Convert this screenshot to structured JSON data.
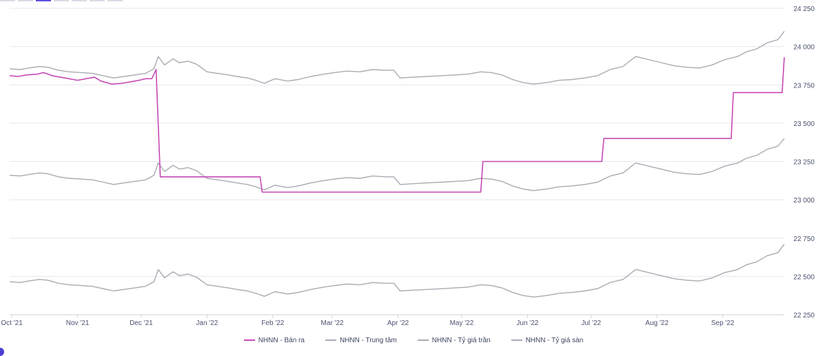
{
  "chart_data": {
    "type": "line",
    "title": "",
    "xlabel": "",
    "ylabel": "",
    "ylim": [
      22250,
      24250
    ],
    "yticks": [
      24250,
      24000,
      23750,
      23500,
      23250,
      23000,
      22750,
      22500,
      22250
    ],
    "ytick_labels": [
      "24 250",
      "24 000",
      "23 750",
      "23 500",
      "23 250",
      "23 000",
      "22 750",
      "22 500",
      "22 250"
    ],
    "x_range": [
      "2021-09-30",
      "2022-09-30"
    ],
    "xticks": [
      {
        "date": "2021-10-01",
        "label": "Oct '21"
      },
      {
        "date": "2021-11-01",
        "label": "Nov '21"
      },
      {
        "date": "2021-12-01",
        "label": "Dec '21"
      },
      {
        "date": "2022-01-01",
        "label": "Jan '22"
      },
      {
        "date": "2022-02-01",
        "label": "Feb '22"
      },
      {
        "date": "2022-03-01",
        "label": "Mar '22"
      },
      {
        "date": "2022-04-01",
        "label": "Apr '22"
      },
      {
        "date": "2022-05-01",
        "label": "May '22"
      },
      {
        "date": "2022-06-01",
        "label": "Jun '22"
      },
      {
        "date": "2022-07-01",
        "label": "Jul '22"
      },
      {
        "date": "2022-08-01",
        "label": "Aug '22"
      },
      {
        "date": "2022-09-01",
        "label": "Sep '22"
      }
    ],
    "grid": "horizontal",
    "legend_position": "bottom-center",
    "series": [
      {
        "name": "NHNN - Bán ra",
        "color": "#c648b4",
        "step": true,
        "points": [
          [
            "2021-09-30",
            23810
          ],
          [
            "2021-10-04",
            23805
          ],
          [
            "2021-10-08",
            23815
          ],
          [
            "2021-10-13",
            23820
          ],
          [
            "2021-10-16",
            23830
          ],
          [
            "2021-10-20",
            23810
          ],
          [
            "2021-10-26",
            23795
          ],
          [
            "2021-11-01",
            23780
          ],
          [
            "2021-11-05",
            23790
          ],
          [
            "2021-11-09",
            23800
          ],
          [
            "2021-11-12",
            23775
          ],
          [
            "2021-11-17",
            23755
          ],
          [
            "2021-11-22",
            23760
          ],
          [
            "2021-11-26",
            23770
          ],
          [
            "2021-11-30",
            23780
          ],
          [
            "2021-12-03",
            23790
          ],
          [
            "2021-12-06",
            23790
          ],
          [
            "2021-12-08",
            23850
          ],
          [
            "2021-12-10",
            23150
          ],
          [
            "2022-01-26",
            23150
          ],
          [
            "2022-01-27",
            23050
          ],
          [
            "2022-05-10",
            23050
          ],
          [
            "2022-05-11",
            23250
          ],
          [
            "2022-07-06",
            23250
          ],
          [
            "2022-07-07",
            23400
          ],
          [
            "2022-09-05",
            23400
          ],
          [
            "2022-09-06",
            23700
          ],
          [
            "2022-09-29",
            23700
          ],
          [
            "2022-09-30",
            23930
          ]
        ]
      },
      {
        "name": "NHNN - Trung tâm",
        "color": "#a9abb3",
        "step": false,
        "points": [
          [
            "2021-09-30",
            23160
          ],
          [
            "2021-10-05",
            23155
          ],
          [
            "2021-10-09",
            23165
          ],
          [
            "2021-10-14",
            23175
          ],
          [
            "2021-10-18",
            23170
          ],
          [
            "2021-10-23",
            23150
          ],
          [
            "2021-10-28",
            23140
          ],
          [
            "2021-11-03",
            23135
          ],
          [
            "2021-11-08",
            23130
          ],
          [
            "2021-11-13",
            23115
          ],
          [
            "2021-11-18",
            23100
          ],
          [
            "2021-11-23",
            23110
          ],
          [
            "2021-11-28",
            23120
          ],
          [
            "2021-12-03",
            23130
          ],
          [
            "2021-12-07",
            23160
          ],
          [
            "2021-12-09",
            23240
          ],
          [
            "2021-12-12",
            23185
          ],
          [
            "2021-12-16",
            23225
          ],
          [
            "2021-12-19",
            23200
          ],
          [
            "2021-12-23",
            23210
          ],
          [
            "2021-12-27",
            23190
          ],
          [
            "2022-01-01",
            23140
          ],
          [
            "2022-01-06",
            23130
          ],
          [
            "2022-01-11",
            23120
          ],
          [
            "2022-01-15",
            23110
          ],
          [
            "2022-01-20",
            23100
          ],
          [
            "2022-01-24",
            23085
          ],
          [
            "2022-01-28",
            23065
          ],
          [
            "2022-02-02",
            23095
          ],
          [
            "2022-02-08",
            23080
          ],
          [
            "2022-02-13",
            23090
          ],
          [
            "2022-02-19",
            23110
          ],
          [
            "2022-02-25",
            23125
          ],
          [
            "2022-03-02",
            23135
          ],
          [
            "2022-03-08",
            23145
          ],
          [
            "2022-03-14",
            23140
          ],
          [
            "2022-03-20",
            23155
          ],
          [
            "2022-03-26",
            23150
          ],
          [
            "2022-03-30",
            23150
          ],
          [
            "2022-04-02",
            23100
          ],
          [
            "2022-04-08",
            23105
          ],
          [
            "2022-04-15",
            23110
          ],
          [
            "2022-04-22",
            23115
          ],
          [
            "2022-04-28",
            23120
          ],
          [
            "2022-05-04",
            23125
          ],
          [
            "2022-05-10",
            23140
          ],
          [
            "2022-05-15",
            23135
          ],
          [
            "2022-05-20",
            23120
          ],
          [
            "2022-05-25",
            23090
          ],
          [
            "2022-05-30",
            23070
          ],
          [
            "2022-06-04",
            23060
          ],
          [
            "2022-06-10",
            23070
          ],
          [
            "2022-06-16",
            23085
          ],
          [
            "2022-06-22",
            23090
          ],
          [
            "2022-06-28",
            23100
          ],
          [
            "2022-07-04",
            23115
          ],
          [
            "2022-07-10",
            23155
          ],
          [
            "2022-07-16",
            23175
          ],
          [
            "2022-07-22",
            23240
          ],
          [
            "2022-07-28",
            23220
          ],
          [
            "2022-08-03",
            23200
          ],
          [
            "2022-08-09",
            23180
          ],
          [
            "2022-08-15",
            23170
          ],
          [
            "2022-08-21",
            23165
          ],
          [
            "2022-08-27",
            23185
          ],
          [
            "2022-09-02",
            23220
          ],
          [
            "2022-09-08",
            23240
          ],
          [
            "2022-09-12",
            23270
          ],
          [
            "2022-09-17",
            23290
          ],
          [
            "2022-09-22",
            23330
          ],
          [
            "2022-09-27",
            23350
          ],
          [
            "2022-09-30",
            23400
          ]
        ]
      },
      {
        "name": "NHNN - Tỷ giá trần",
        "color": "#a9abb3",
        "step": false,
        "points": [
          [
            "2021-09-30",
            23855
          ],
          [
            "2021-10-05",
            23850
          ],
          [
            "2021-10-09",
            23860
          ],
          [
            "2021-10-14",
            23870
          ],
          [
            "2021-10-18",
            23865
          ],
          [
            "2021-10-23",
            23845
          ],
          [
            "2021-10-28",
            23835
          ],
          [
            "2021-11-03",
            23830
          ],
          [
            "2021-11-08",
            23825
          ],
          [
            "2021-11-13",
            23810
          ],
          [
            "2021-11-18",
            23795
          ],
          [
            "2021-11-23",
            23805
          ],
          [
            "2021-11-28",
            23815
          ],
          [
            "2021-12-03",
            23825
          ],
          [
            "2021-12-07",
            23855
          ],
          [
            "2021-12-09",
            23935
          ],
          [
            "2021-12-12",
            23880
          ],
          [
            "2021-12-16",
            23920
          ],
          [
            "2021-12-19",
            23895
          ],
          [
            "2021-12-23",
            23905
          ],
          [
            "2021-12-27",
            23885
          ],
          [
            "2022-01-01",
            23835
          ],
          [
            "2022-01-06",
            23825
          ],
          [
            "2022-01-11",
            23815
          ],
          [
            "2022-01-15",
            23805
          ],
          [
            "2022-01-20",
            23795
          ],
          [
            "2022-01-24",
            23780
          ],
          [
            "2022-01-28",
            23760
          ],
          [
            "2022-02-02",
            23790
          ],
          [
            "2022-02-08",
            23775
          ],
          [
            "2022-02-13",
            23785
          ],
          [
            "2022-02-19",
            23805
          ],
          [
            "2022-02-25",
            23820
          ],
          [
            "2022-03-02",
            23830
          ],
          [
            "2022-03-08",
            23840
          ],
          [
            "2022-03-14",
            23835
          ],
          [
            "2022-03-20",
            23850
          ],
          [
            "2022-03-26",
            23845
          ],
          [
            "2022-03-30",
            23845
          ],
          [
            "2022-04-02",
            23795
          ],
          [
            "2022-04-08",
            23800
          ],
          [
            "2022-04-15",
            23805
          ],
          [
            "2022-04-22",
            23810
          ],
          [
            "2022-04-28",
            23815
          ],
          [
            "2022-05-04",
            23820
          ],
          [
            "2022-05-10",
            23835
          ],
          [
            "2022-05-15",
            23830
          ],
          [
            "2022-05-20",
            23815
          ],
          [
            "2022-05-25",
            23785
          ],
          [
            "2022-05-30",
            23765
          ],
          [
            "2022-06-04",
            23755
          ],
          [
            "2022-06-10",
            23765
          ],
          [
            "2022-06-16",
            23780
          ],
          [
            "2022-06-22",
            23785
          ],
          [
            "2022-06-28",
            23795
          ],
          [
            "2022-07-04",
            23810
          ],
          [
            "2022-07-10",
            23850
          ],
          [
            "2022-07-16",
            23870
          ],
          [
            "2022-07-22",
            23935
          ],
          [
            "2022-07-28",
            23915
          ],
          [
            "2022-08-03",
            23895
          ],
          [
            "2022-08-09",
            23875
          ],
          [
            "2022-08-15",
            23865
          ],
          [
            "2022-08-21",
            23860
          ],
          [
            "2022-08-27",
            23880
          ],
          [
            "2022-09-02",
            23915
          ],
          [
            "2022-09-08",
            23935
          ],
          [
            "2022-09-12",
            23965
          ],
          [
            "2022-09-17",
            23985
          ],
          [
            "2022-09-22",
            24025
          ],
          [
            "2022-09-27",
            24045
          ],
          [
            "2022-09-30",
            24100
          ]
        ]
      },
      {
        "name": "NHNN - Tỷ giá sàn",
        "color": "#a9abb3",
        "step": false,
        "points": [
          [
            "2021-09-30",
            22465
          ],
          [
            "2021-10-05",
            22460
          ],
          [
            "2021-10-09",
            22470
          ],
          [
            "2021-10-14",
            22480
          ],
          [
            "2021-10-18",
            22475
          ],
          [
            "2021-10-23",
            22455
          ],
          [
            "2021-10-28",
            22445
          ],
          [
            "2021-11-03",
            22440
          ],
          [
            "2021-11-08",
            22435
          ],
          [
            "2021-11-13",
            22420
          ],
          [
            "2021-11-18",
            22405
          ],
          [
            "2021-11-23",
            22415
          ],
          [
            "2021-11-28",
            22425
          ],
          [
            "2021-12-03",
            22435
          ],
          [
            "2021-12-07",
            22465
          ],
          [
            "2021-12-09",
            22545
          ],
          [
            "2021-12-12",
            22490
          ],
          [
            "2021-12-16",
            22530
          ],
          [
            "2021-12-19",
            22505
          ],
          [
            "2021-12-23",
            22515
          ],
          [
            "2021-12-27",
            22495
          ],
          [
            "2022-01-01",
            22445
          ],
          [
            "2022-01-06",
            22435
          ],
          [
            "2022-01-11",
            22425
          ],
          [
            "2022-01-15",
            22415
          ],
          [
            "2022-01-20",
            22405
          ],
          [
            "2022-01-24",
            22390
          ],
          [
            "2022-01-28",
            22370
          ],
          [
            "2022-02-02",
            22400
          ],
          [
            "2022-02-08",
            22385
          ],
          [
            "2022-02-13",
            22395
          ],
          [
            "2022-02-19",
            22415
          ],
          [
            "2022-02-25",
            22430
          ],
          [
            "2022-03-02",
            22440
          ],
          [
            "2022-03-08",
            22450
          ],
          [
            "2022-03-14",
            22445
          ],
          [
            "2022-03-20",
            22460
          ],
          [
            "2022-03-26",
            22455
          ],
          [
            "2022-03-30",
            22455
          ],
          [
            "2022-04-02",
            22405
          ],
          [
            "2022-04-08",
            22410
          ],
          [
            "2022-04-15",
            22415
          ],
          [
            "2022-04-22",
            22420
          ],
          [
            "2022-04-28",
            22425
          ],
          [
            "2022-05-04",
            22430
          ],
          [
            "2022-05-10",
            22445
          ],
          [
            "2022-05-15",
            22440
          ],
          [
            "2022-05-20",
            22425
          ],
          [
            "2022-05-25",
            22395
          ],
          [
            "2022-05-30",
            22375
          ],
          [
            "2022-06-04",
            22365
          ],
          [
            "2022-06-10",
            22375
          ],
          [
            "2022-06-16",
            22390
          ],
          [
            "2022-06-22",
            22395
          ],
          [
            "2022-06-28",
            22405
          ],
          [
            "2022-07-04",
            22420
          ],
          [
            "2022-07-10",
            22460
          ],
          [
            "2022-07-16",
            22480
          ],
          [
            "2022-07-22",
            22545
          ],
          [
            "2022-07-28",
            22525
          ],
          [
            "2022-08-03",
            22505
          ],
          [
            "2022-08-09",
            22485
          ],
          [
            "2022-08-15",
            22475
          ],
          [
            "2022-08-21",
            22470
          ],
          [
            "2022-08-27",
            22490
          ],
          [
            "2022-09-02",
            22525
          ],
          [
            "2022-09-08",
            22545
          ],
          [
            "2022-09-12",
            22575
          ],
          [
            "2022-09-17",
            22595
          ],
          [
            "2022-09-22",
            22635
          ],
          [
            "2022-09-27",
            22655
          ],
          [
            "2022-09-30",
            22710
          ]
        ]
      }
    ]
  }
}
